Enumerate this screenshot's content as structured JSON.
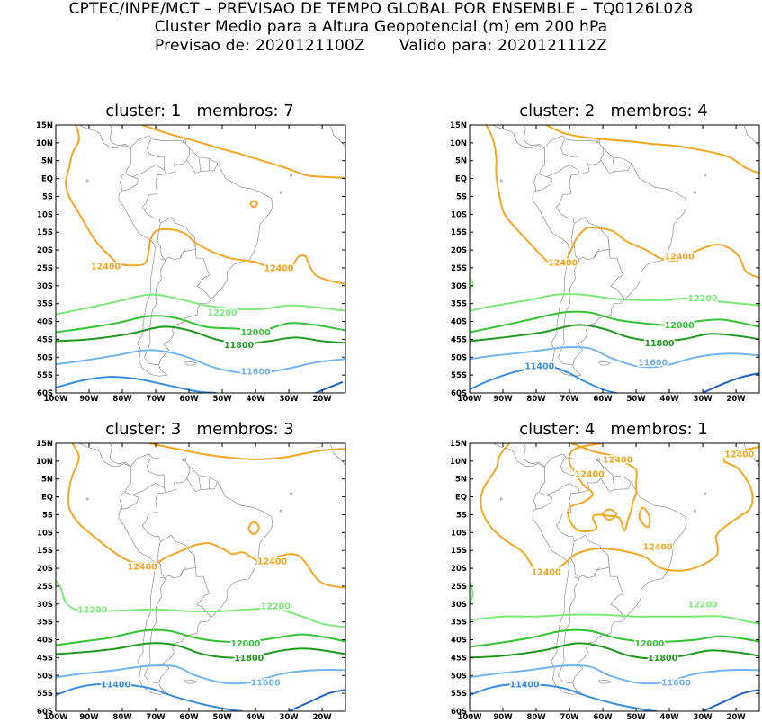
{
  "header": {
    "line1": "CPTEC/INPE/MCT – PREVISAO DE TEMPO GLOBAL POR ENSEMBLE – TQ0126L028",
    "line2": "Cluster Medio para a Altura Geopotencial (m) em 200 hPa",
    "line3_left": "Previsao de: 2020121100Z",
    "line3_right": "Valido para: 2020121112Z"
  },
  "axes": {
    "lat_labels": [
      "15N",
      "10N",
      "5N",
      "EQ",
      "5S",
      "10S",
      "15S",
      "20S",
      "25S",
      "30S",
      "35S",
      "40S",
      "45S",
      "50S",
      "55S",
      "60S"
    ],
    "lon_labels": [
      "100W",
      "90W",
      "80W",
      "70W",
      "60W",
      "50W",
      "40W",
      "30W",
      "20W"
    ],
    "lat_range": [
      -60,
      15
    ],
    "lon_range": [
      -100,
      -13
    ]
  },
  "contour_colors": {
    "12400": "#f5a623",
    "12200": "#7ee97a",
    "12000": "#34c434",
    "11800": "#1f9a1f",
    "11600": "#74b4f0",
    "11400": "#3a8ee0",
    "11200": "#2060c8"
  },
  "panels": [
    {
      "title": "cluster: 1   membros: 7",
      "labels": [
        {
          "text": "12400",
          "lon": -85,
          "lat": -24.5,
          "color": "#f5a623"
        },
        {
          "text": "12400",
          "lon": -33,
          "lat": -25,
          "color": "#f5a623"
        },
        {
          "text": "12200",
          "lon": -50,
          "lat": -37.5,
          "color": "#7ee97a"
        },
        {
          "text": "12000",
          "lon": -40,
          "lat": -43,
          "color": "#34c434"
        },
        {
          "text": "11800",
          "lon": -45,
          "lat": -46.5,
          "color": "#1f9a1f"
        },
        {
          "text": "11600",
          "lon": -40,
          "lat": -54,
          "color": "#74b4f0"
        }
      ]
    },
    {
      "title": "cluster: 2   membros: 4",
      "labels": [
        {
          "text": "12400",
          "lon": -72,
          "lat": -23.5,
          "color": "#f5a623"
        },
        {
          "text": "12400",
          "lon": -37,
          "lat": -21.8,
          "color": "#f5a623"
        },
        {
          "text": "12200",
          "lon": -30,
          "lat": -33.5,
          "color": "#7ee97a"
        },
        {
          "text": "12000",
          "lon": -37,
          "lat": -41,
          "color": "#34c434"
        },
        {
          "text": "11800",
          "lon": -43,
          "lat": -46,
          "color": "#1f9a1f"
        },
        {
          "text": "11400",
          "lon": -79,
          "lat": -52.5,
          "color": "#3a8ee0"
        },
        {
          "text": "11600",
          "lon": -45,
          "lat": -51.5,
          "color": "#74b4f0"
        }
      ]
    },
    {
      "title": "cluster: 3   membros: 3",
      "labels": [
        {
          "text": "12400",
          "lon": -74,
          "lat": -19.5,
          "color": "#f5a623"
        },
        {
          "text": "12400",
          "lon": -35,
          "lat": -18,
          "color": "#f5a623"
        },
        {
          "text": "12200",
          "lon": -89,
          "lat": -31.5,
          "color": "#7ee97a"
        },
        {
          "text": "12200",
          "lon": -34,
          "lat": -30.5,
          "color": "#7ee97a"
        },
        {
          "text": "12000",
          "lon": -43,
          "lat": -41,
          "color": "#34c434"
        },
        {
          "text": "11800",
          "lon": -42,
          "lat": -45,
          "color": "#1f9a1f"
        },
        {
          "text": "11400",
          "lon": -82,
          "lat": -52.5,
          "color": "#3a8ee0"
        },
        {
          "text": "11600",
          "lon": -37,
          "lat": -52,
          "color": "#74b4f0"
        }
      ]
    },
    {
      "title": "cluster: 4   membros: 1",
      "labels": [
        {
          "text": "12400",
          "lon": -19,
          "lat": 12,
          "color": "#f5a623"
        },
        {
          "text": "12400",
          "lon": -55.5,
          "lat": 10.5,
          "color": "#f5a623"
        },
        {
          "text": "12400",
          "lon": -64,
          "lat": 6.5,
          "color": "#f5a623"
        },
        {
          "text": "12400",
          "lon": -43.5,
          "lat": -14,
          "color": "#f5a623"
        },
        {
          "text": "12400",
          "lon": -77,
          "lat": -21,
          "color": "#f5a623"
        },
        {
          "text": "12200",
          "lon": -30,
          "lat": -30,
          "color": "#7ee97a"
        },
        {
          "text": "12000",
          "lon": -46,
          "lat": -41,
          "color": "#34c434"
        },
        {
          "text": "11800",
          "lon": -42,
          "lat": -45,
          "color": "#1f9a1f"
        },
        {
          "text": "11400",
          "lon": -83.5,
          "lat": -52.5,
          "color": "#3a8ee0"
        },
        {
          "text": "11600",
          "lon": -38,
          "lat": -52,
          "color": "#74b4f0"
        }
      ]
    }
  ]
}
